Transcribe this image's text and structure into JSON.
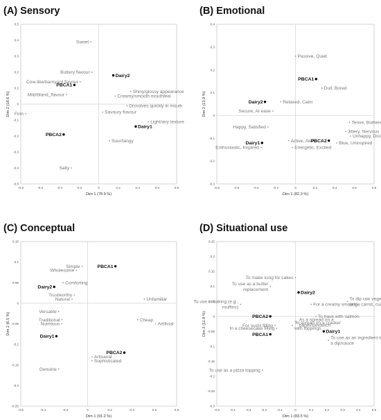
{
  "chart_data": [
    {
      "type": "scatter",
      "title": "(A) Sensory",
      "xlabel": "Dim 1 (78.9 %)",
      "ylabel": "Dim 2 (18.6 %)",
      "xlim": [
        -0.8,
        0.8
      ],
      "ylim": [
        -0.5,
        0.5
      ],
      "xticks": [
        -0.8,
        -0.6,
        -0.4,
        -0.2,
        0,
        0.2,
        0.4,
        0.6,
        0.8
      ],
      "yticks": [
        -0.5,
        -0.4,
        -0.3,
        -0.2,
        -0.1,
        0,
        0.1,
        0.2,
        0.3,
        0.4,
        0.5
      ],
      "points": [
        {
          "label": "Sweet",
          "x": -0.08,
          "y": 0.39,
          "kind": "attribute"
        },
        {
          "label": "Buttery flavour",
          "x": -0.07,
          "y": 0.2,
          "kind": "attribute"
        },
        {
          "label": "Dairy2",
          "x": 0.15,
          "y": 0.18,
          "kind": "product"
        },
        {
          "label": "Cow-like/barnyard flavour",
          "x": -0.19,
          "y": 0.14,
          "kind": "attribute"
        },
        {
          "label": "PBCA1",
          "x": -0.25,
          "y": 0.12,
          "kind": "product"
        },
        {
          "label": "Mild/bland_flavour",
          "x": -0.33,
          "y": 0.06,
          "kind": "attribute"
        },
        {
          "label": "Shiny/glossy appearance",
          "x": 0.33,
          "y": 0.08,
          "kind": "attribute"
        },
        {
          "label": "Creamy/smooth mouthfeel",
          "x": 0.17,
          "y": 0.05,
          "kind": "attribute"
        },
        {
          "label": "Dissolves quickly in mouth",
          "x": 0.29,
          "y": -0.01,
          "kind": "attribute"
        },
        {
          "label": "Firm",
          "x": -0.75,
          "y": -0.06,
          "kind": "attribute"
        },
        {
          "label": "Savoury flavour",
          "x": 0.04,
          "y": -0.05,
          "kind": "attribute"
        },
        {
          "label": "Light/airy texture",
          "x": 0.51,
          "y": -0.11,
          "kind": "attribute"
        },
        {
          "label": "Dairy1",
          "x": 0.38,
          "y": -0.14,
          "kind": "product"
        },
        {
          "label": "PBCA2",
          "x": -0.36,
          "y": -0.19,
          "kind": "product"
        },
        {
          "label": "Sour/tangy",
          "x": 0.11,
          "y": -0.23,
          "kind": "attribute"
        },
        {
          "label": "Salty",
          "x": -0.28,
          "y": -0.4,
          "kind": "attribute"
        }
      ]
    },
    {
      "type": "scatter",
      "title": "(B) Emotional",
      "xlabel": "Dim 1 (82.3 %)",
      "ylabel": "Dim 2 (13.9 %)",
      "xlim": [
        -0.8,
        0.8
      ],
      "ylim": [
        -0.3,
        0.4
      ],
      "xticks": [
        -0.8,
        -0.6,
        -0.4,
        -0.2,
        0,
        0.2,
        0.4,
        0.6,
        0.8
      ],
      "yticks": [
        -0.3,
        -0.2,
        -0.1,
        0,
        0.1,
        0.2,
        0.3,
        0.4
      ],
      "points": [
        {
          "label": "Passive, Quiet",
          "x": 0.0,
          "y": 0.26,
          "kind": "attribute"
        },
        {
          "label": "PBCA1",
          "x": 0.21,
          "y": 0.16,
          "kind": "product"
        },
        {
          "label": "Dull, Bored",
          "x": 0.27,
          "y": 0.12,
          "kind": "attribute"
        },
        {
          "label": "Dairy2",
          "x": -0.31,
          "y": 0.06,
          "kind": "product"
        },
        {
          "label": "Relaxed, Calm",
          "x": -0.15,
          "y": 0.06,
          "kind": "attribute"
        },
        {
          "label": "Secure, At ease",
          "x": -0.23,
          "y": 0.02,
          "kind": "attribute"
        },
        {
          "label": "Tense, Bothered",
          "x": 0.55,
          "y": -0.03,
          "kind": "attribute"
        },
        {
          "label": "Happy, Satisfied",
          "x": -0.28,
          "y": -0.05,
          "kind": "attribute"
        },
        {
          "label": "Jittery, Nervous",
          "x": 0.51,
          "y": -0.07,
          "kind": "attribute"
        },
        {
          "label": "Unhappy, Dissatisfied",
          "x": 0.56,
          "y": -0.09,
          "kind": "attribute"
        },
        {
          "label": "Dairy1",
          "x": -0.34,
          "y": -0.12,
          "kind": "product"
        },
        {
          "label": "Enthusiastic, Inspired",
          "x": -0.35,
          "y": -0.14,
          "kind": "attribute"
        },
        {
          "label": "Active, Alert",
          "x": -0.07,
          "y": -0.11,
          "kind": "attribute"
        },
        {
          "label": "PBCA2",
          "x": 0.34,
          "y": -0.11,
          "kind": "product"
        },
        {
          "label": "Blue, Uninspired",
          "x": 0.42,
          "y": -0.12,
          "kind": "attribute"
        },
        {
          "label": "Energetic, Excited",
          "x": -0.03,
          "y": -0.14,
          "kind": "attribute"
        }
      ]
    },
    {
      "type": "scatter",
      "title": "(C) Conceptual",
      "xlabel": "Dim 1 (91.2 %)",
      "ylabel": "Dim 2 (6.5 %)",
      "xlim": [
        -0.6,
        0.8
      ],
      "ylim": [
        -0.25,
        0.15
      ],
      "xticks": [
        -0.6,
        -0.4,
        -0.2,
        0,
        0.2,
        0.4,
        0.6,
        0.8
      ],
      "yticks": [
        -0.25,
        -0.2,
        -0.15,
        -0.1,
        -0.05,
        0,
        0.05,
        0.1,
        0.15
      ],
      "points": [
        {
          "label": "Simple",
          "x": -0.05,
          "y": 0.09,
          "kind": "attribute"
        },
        {
          "label": "Wholesome",
          "x": -0.1,
          "y": 0.08,
          "kind": "attribute"
        },
        {
          "label": "PBCA1",
          "x": 0.25,
          "y": 0.09,
          "kind": "product"
        },
        {
          "label": "Comforting",
          "x": -0.22,
          "y": 0.05,
          "kind": "attribute"
        },
        {
          "label": "Dairy2",
          "x": -0.3,
          "y": 0.04,
          "kind": "product"
        },
        {
          "label": "Trustworthy",
          "x": -0.12,
          "y": 0.02,
          "kind": "attribute"
        },
        {
          "label": "Natural",
          "x": -0.14,
          "y": 0.01,
          "kind": "attribute"
        },
        {
          "label": "Unfamiliar",
          "x": 0.51,
          "y": 0.01,
          "kind": "attribute"
        },
        {
          "label": "Versatile",
          "x": -0.26,
          "y": -0.02,
          "kind": "attribute"
        },
        {
          "label": "Traditional",
          "x": -0.23,
          "y": -0.04,
          "kind": "attribute"
        },
        {
          "label": "Cheap",
          "x": 0.45,
          "y": -0.04,
          "kind": "attribute"
        },
        {
          "label": "Nutritious",
          "x": -0.23,
          "y": -0.05,
          "kind": "attribute"
        },
        {
          "label": "Artificial",
          "x": 0.61,
          "y": -0.05,
          "kind": "attribute"
        },
        {
          "label": "Dairy1",
          "x": -0.28,
          "y": -0.08,
          "kind": "product"
        },
        {
          "label": "PBCA2",
          "x": 0.33,
          "y": -0.12,
          "kind": "product"
        },
        {
          "label": "Artisanal",
          "x": 0.04,
          "y": -0.13,
          "kind": "attribute"
        },
        {
          "label": "Sophisticated",
          "x": 0.04,
          "y": -0.14,
          "kind": "attribute"
        },
        {
          "label": "Genuine",
          "x": -0.26,
          "y": -0.16,
          "kind": "attribute"
        }
      ]
    },
    {
      "type": "scatter",
      "title": "(D) Situational use",
      "xlabel": "Dim 1 (83.5 %)",
      "ylabel": "Dim 2 (11.8 %)",
      "xlim": [
        -0.5,
        0.5
      ],
      "ylim": [
        -0.3,
        0.25
      ],
      "xticks": [
        -0.5,
        -0.4,
        -0.3,
        -0.2,
        -0.1,
        0,
        0.1,
        0.2,
        0.3,
        0.4,
        0.5
      ],
      "yticks": [
        -0.3,
        -0.25,
        -0.2,
        -0.15,
        -0.1,
        -0.05,
        0,
        0.05,
        0.1,
        0.15,
        0.2,
        0.25
      ],
      "points": [
        {
          "label": "To make icing for cakes",
          "x": 0.0,
          "y": 0.13,
          "kind": "attribute"
        },
        {
          "label": "To use as a butter replacement",
          "x": -0.16,
          "y": 0.1,
          "kind": "attribute"
        },
        {
          "label": "Dairy2",
          "x": 0.02,
          "y": 0.08,
          "kind": "product"
        },
        {
          "label": "To dip raw vegetables in (e.g., carrot, cucumber)",
          "x": 0.33,
          "y": 0.05,
          "kind": "attribute"
        },
        {
          "label": "For a creamy smoothie",
          "x": 0.1,
          "y": 0.04,
          "kind": "attribute"
        },
        {
          "label": "To use in baking (e.g., muffins)",
          "x": -0.35,
          "y": 0.04,
          "kind": "attribute"
        },
        {
          "label": "PBCA2",
          "x": -0.16,
          "y": 0.0,
          "kind": "product"
        },
        {
          "label": "To have with salmon",
          "x": 0.13,
          "y": 0.0,
          "kind": "attribute"
        },
        {
          "label": "As a spread on a bagel/sandwich",
          "x": 0.01,
          "y": -0.02,
          "kind": "attribute"
        },
        {
          "label": "For sushi filling",
          "x": -0.13,
          "y": -0.03,
          "kind": "attribute"
        },
        {
          "label": "To spread on a cracker with toppings",
          "x": -0.02,
          "y": -0.03,
          "kind": "attribute"
        },
        {
          "label": "In a cheesecake filling",
          "x": -0.12,
          "y": -0.04,
          "kind": "attribute"
        },
        {
          "label": "Dairy1",
          "x": 0.18,
          "y": -0.05,
          "kind": "product"
        },
        {
          "label": "PBCA1",
          "x": -0.16,
          "y": -0.06,
          "kind": "product"
        },
        {
          "label": "To use as an ingredient in a dip/sauce",
          "x": 0.21,
          "y": -0.08,
          "kind": "attribute"
        },
        {
          "label": "To use as a pizza topping",
          "x": -0.21,
          "y": -0.18,
          "kind": "attribute"
        }
      ]
    }
  ]
}
